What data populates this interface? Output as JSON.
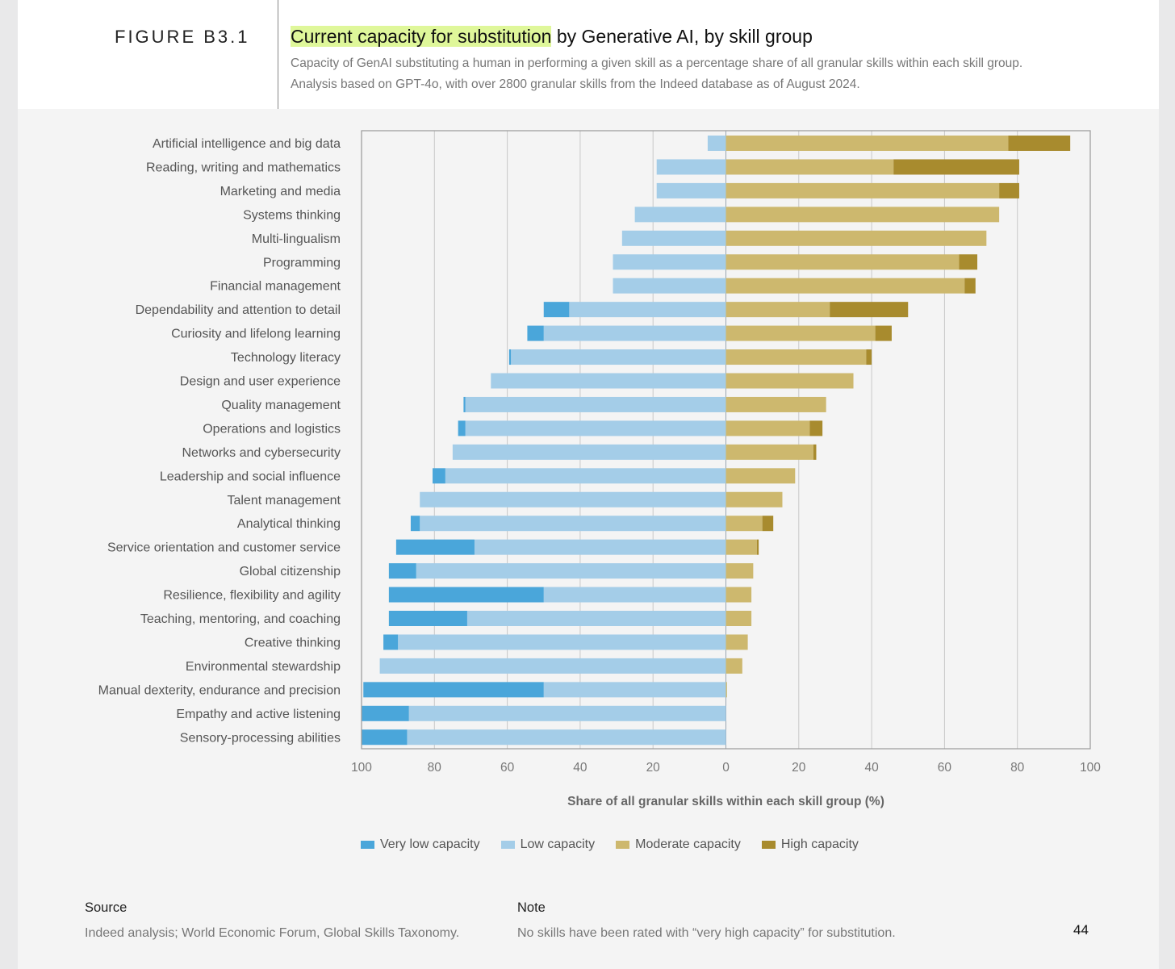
{
  "header": {
    "figure_label": "FIGURE B3.1",
    "title_highlight": "Current capacity for substitution",
    "title_rest": " by Generative AI, by skill group",
    "subtitle_line1": "Capacity of GenAI substituting a human in performing a given skill as a percentage share of all granular skills within each skill group.",
    "subtitle_line2": "Analysis based on GPT-4o, with over 2800 granular skills from the Indeed database as of August 2024."
  },
  "colors": {
    "very_low": "#4aa6da",
    "low": "#a4cde8",
    "moderate": "#cdb86e",
    "high": "#a88b2e",
    "highlight": "#dff79a"
  },
  "chart_data": {
    "type": "bar",
    "orientation": "horizontal-diverging",
    "categories": [
      "Artificial intelligence and big data",
      "Reading, writing and mathematics",
      "Marketing and media",
      "Systems thinking",
      "Multi-lingualism",
      "Programming",
      "Financial management",
      "Dependability and attention to detail",
      "Curiosity and lifelong learning",
      "Technology literacy",
      "Design and user experience",
      "Quality management",
      "Operations and logistics",
      "Networks and cybersecurity",
      "Leadership and social influence",
      "Talent management",
      "Analytical thinking",
      "Service orientation and customer service",
      "Global citizenship",
      "Resilience, flexibility and agility",
      "Teaching, mentoring, and coaching",
      "Creative thinking",
      "Environmental stewardship",
      "Manual dexterity, endurance and precision",
      "Empathy and active listening",
      "Sensory-processing abilities"
    ],
    "series": [
      {
        "name": "Very low capacity",
        "side": "left",
        "values": [
          0,
          0,
          0,
          0,
          0,
          0,
          0,
          7,
          4.5,
          0.5,
          0,
          0.5,
          2,
          0,
          3.5,
          0,
          2.5,
          21.5,
          7.5,
          42.5,
          21.5,
          4,
          0,
          49.5,
          13,
          12.5
        ]
      },
      {
        "name": "Low capacity",
        "side": "left",
        "values": [
          5,
          19,
          19,
          25,
          28.5,
          31,
          31,
          43,
          50,
          59,
          64.5,
          71.5,
          71.5,
          75,
          77,
          84,
          84,
          69,
          85,
          50,
          71,
          90,
          95,
          50,
          87,
          87.5
        ]
      },
      {
        "name": "Moderate capacity",
        "side": "right",
        "values": [
          77.5,
          46,
          75,
          75,
          71.5,
          64,
          65.5,
          28.5,
          41,
          38.5,
          35,
          27.5,
          23,
          24,
          19,
          15.5,
          10,
          8.5,
          7.5,
          7,
          7,
          6,
          4.5,
          0.3,
          0,
          0
        ]
      },
      {
        "name": "High capacity",
        "side": "right",
        "values": [
          17,
          34.5,
          5.5,
          0,
          0,
          5,
          3,
          21.5,
          4.5,
          1.5,
          0,
          0,
          3.5,
          0.8,
          0,
          0,
          3,
          0.5,
          0,
          0,
          0,
          0,
          0,
          0,
          0,
          0
        ]
      }
    ],
    "x_ticks": [
      "100",
      "80",
      "60",
      "40",
      "20",
      "0",
      "20",
      "40",
      "60",
      "80",
      "100"
    ],
    "xlim": [
      -100,
      100
    ],
    "xlabel": "Share of all granular skills within each skill group (%)",
    "grid": true,
    "legend_position": "bottom"
  },
  "footer": {
    "source_heading": "Source",
    "source_text": "Indeed analysis; World Economic Forum, Global Skills Taxonomy.",
    "note_heading": "Note",
    "note_text": "No skills have been rated with “very high capacity” for substitution.",
    "page_number": "44"
  }
}
